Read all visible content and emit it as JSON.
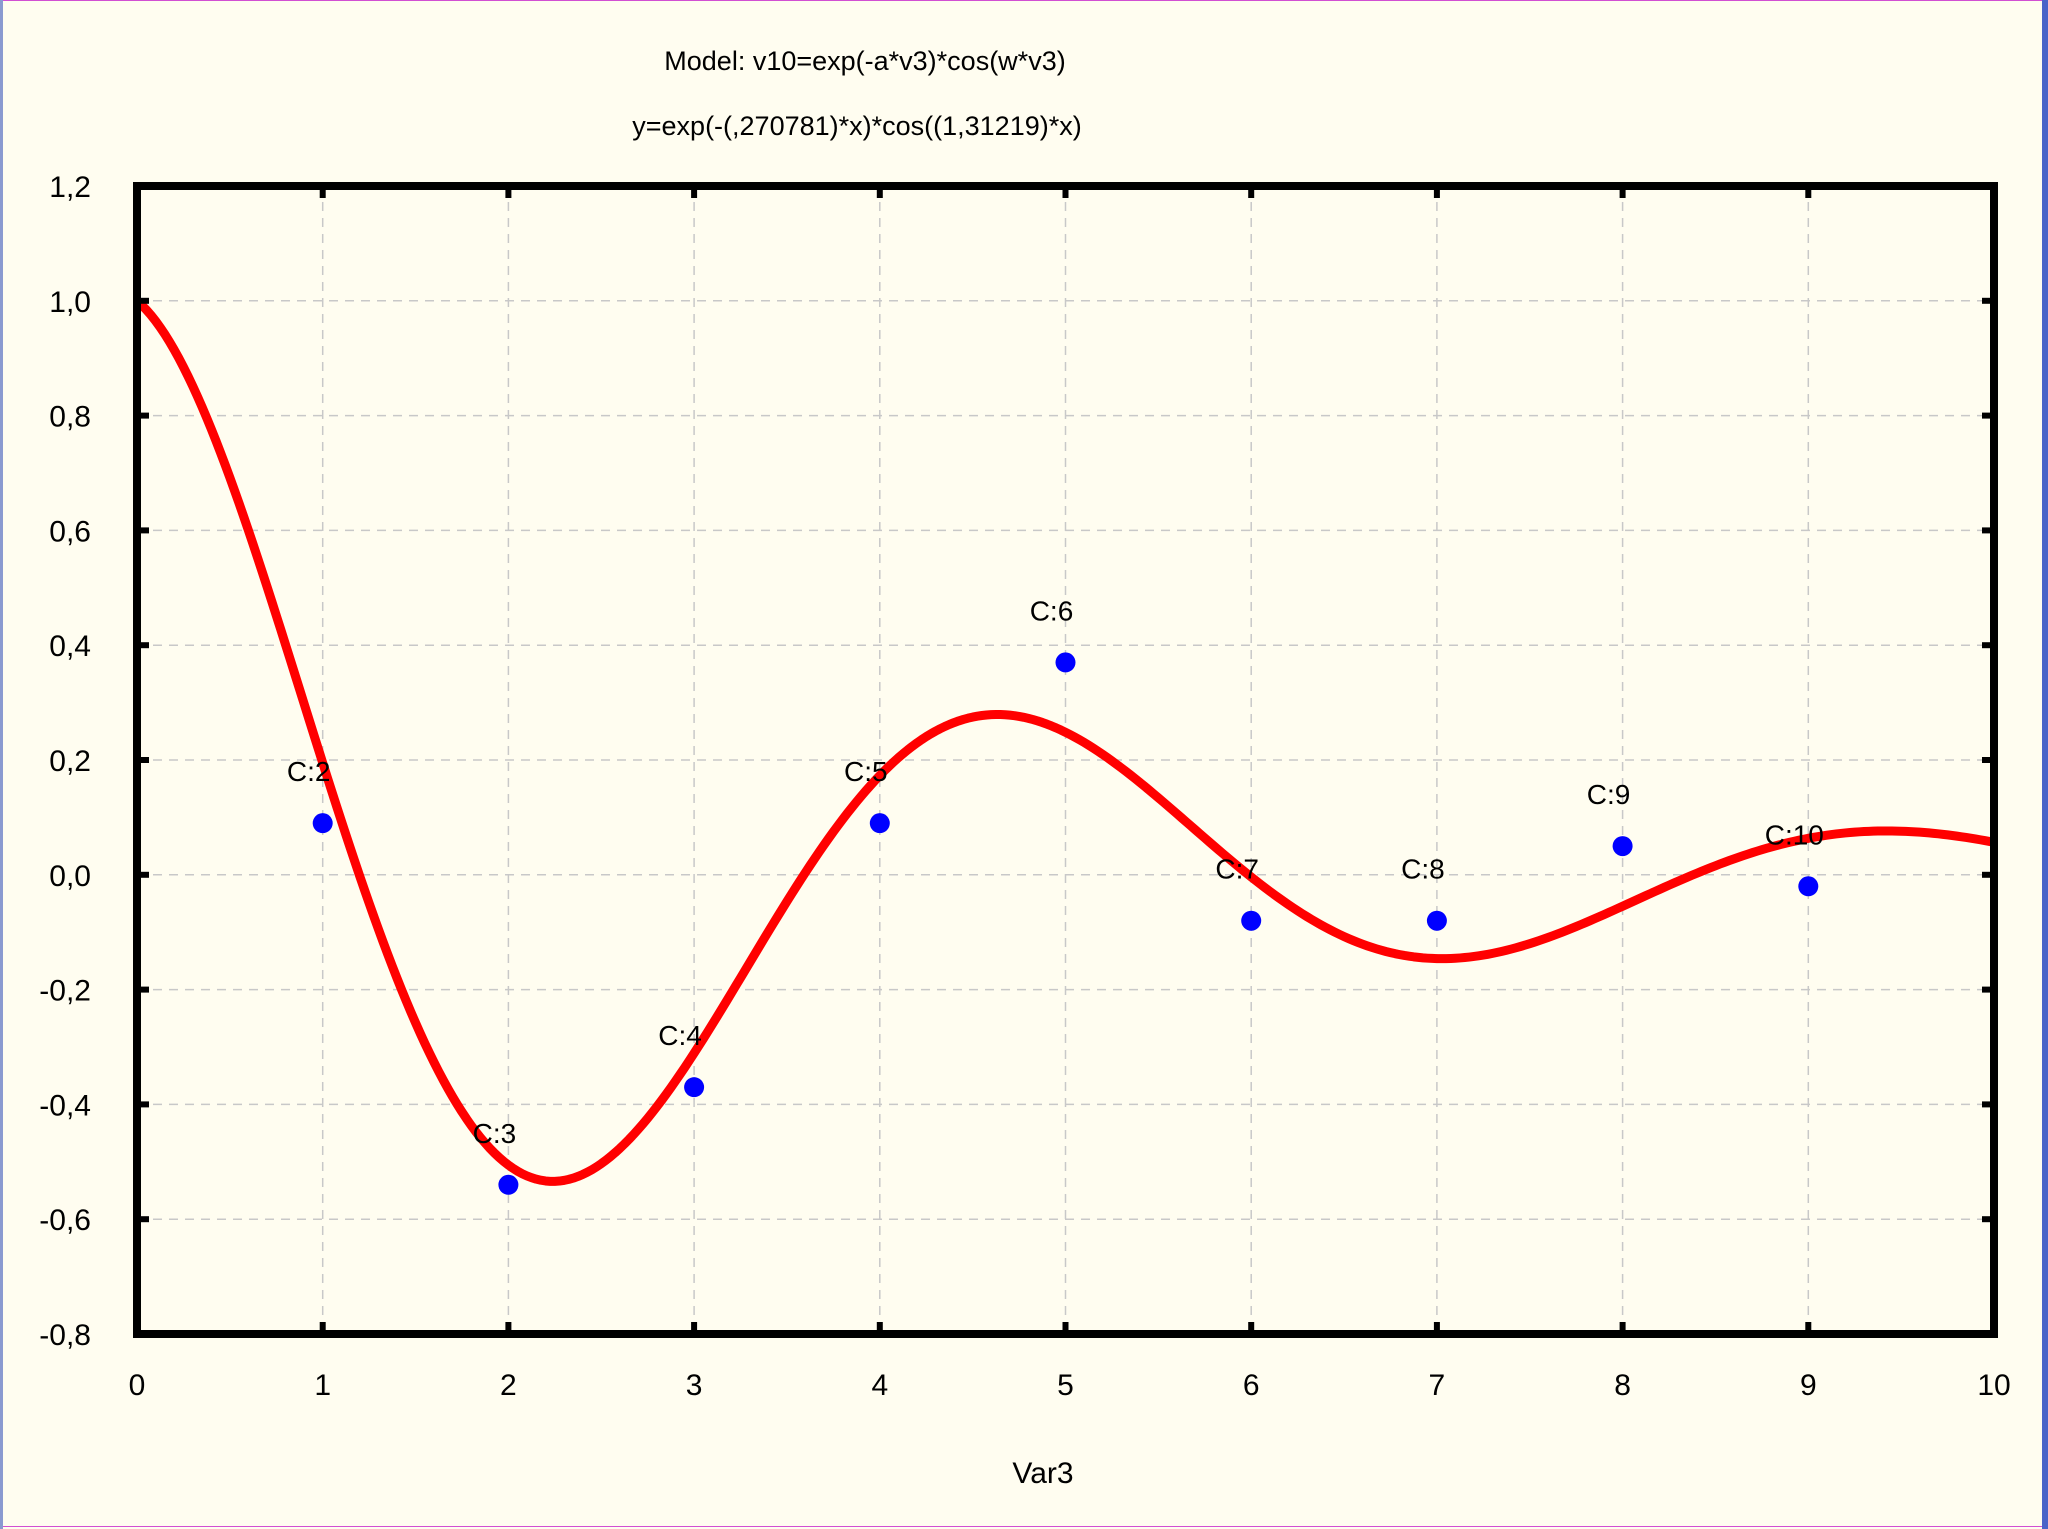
{
  "chart_data": {
    "type": "scatter",
    "title": "Model: v10=exp(-a*v3)*cos(w*v3)",
    "subtitle": "y=exp(-(,270781)*x)*cos((1,31219)*x)",
    "xlabel": "Var3",
    "ylabel": "",
    "xlim": [
      0,
      10
    ],
    "ylim": [
      -0.8,
      1.2
    ],
    "x_ticks": [
      "0",
      "1",
      "2",
      "3",
      "4",
      "5",
      "6",
      "7",
      "8",
      "9",
      "10"
    ],
    "y_ticks": [
      "-0,8",
      "-0,6",
      "-0,4",
      "-0,2",
      "0,0",
      "0,2",
      "0,4",
      "0,6",
      "0,8",
      "1,0",
      "1,2"
    ],
    "grid": true,
    "fit": {
      "a": 0.270781,
      "w": 1.31219,
      "color": "#ff0000"
    },
    "points": [
      {
        "label": "C:2",
        "x": 1,
        "y": 0.09
      },
      {
        "label": "C:3",
        "x": 2,
        "y": -0.54
      },
      {
        "label": "C:4",
        "x": 3,
        "y": -0.37
      },
      {
        "label": "C:5",
        "x": 4,
        "y": 0.09
      },
      {
        "label": "C:6",
        "x": 5,
        "y": 0.37
      },
      {
        "label": "C:7",
        "x": 6,
        "y": -0.08
      },
      {
        "label": "C:8",
        "x": 7,
        "y": -0.08
      },
      {
        "label": "C:9",
        "x": 8,
        "y": 0.05
      },
      {
        "label": "C:10",
        "x": 9,
        "y": -0.02
      }
    ],
    "point_color": "#0000ff"
  }
}
